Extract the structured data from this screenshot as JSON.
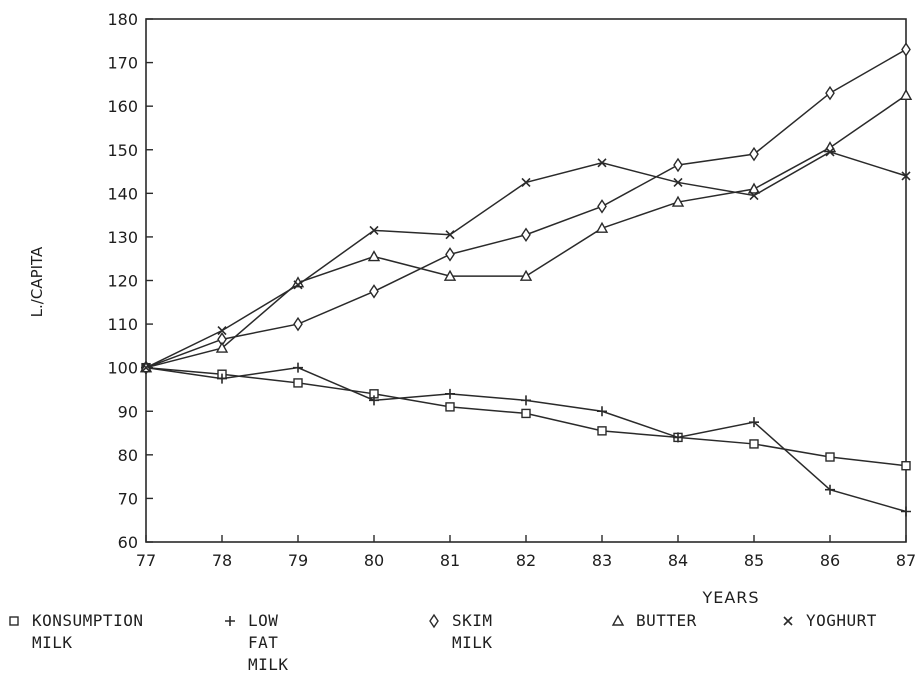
{
  "chart_data": {
    "type": "line",
    "title": "",
    "xlabel": "YEARS",
    "ylabel": "L./CAPITA",
    "x": [
      77,
      78,
      79,
      80,
      81,
      82,
      83,
      84,
      85,
      86,
      87
    ],
    "xlim": [
      77,
      87
    ],
    "ylim": [
      60,
      180
    ],
    "yticks": [
      60,
      70,
      80,
      90,
      100,
      110,
      120,
      130,
      140,
      150,
      160,
      170,
      180
    ],
    "grid": false,
    "legend_position": "bottom",
    "line_color": "#2a2a2a",
    "series": [
      {
        "name": "KONSUMPTION MILK",
        "marker": "square",
        "values": [
          100,
          98.5,
          96.5,
          94,
          91,
          89.5,
          85.5,
          84,
          82.5,
          79.5,
          77.5
        ]
      },
      {
        "name": "LOW FAT MILK",
        "marker": "plus",
        "values": [
          100,
          97.5,
          100,
          92.5,
          94,
          92.5,
          90,
          84,
          87.5,
          72,
          67
        ]
      },
      {
        "name": "SKIM MILK",
        "marker": "diamond",
        "values": [
          100,
          106.5,
          110,
          117.5,
          126,
          130.5,
          137,
          146.5,
          149,
          163,
          173
        ]
      },
      {
        "name": "BUTTER",
        "marker": "triangle",
        "values": [
          100,
          104.5,
          119.5,
          125.5,
          121,
          121,
          132,
          138,
          141,
          150.5,
          162.5
        ]
      },
      {
        "name": "YOGHURT",
        "marker": "x",
        "values": [
          100,
          108.5,
          119,
          131.5,
          130.5,
          142.5,
          147,
          142.5,
          139.5,
          149.5,
          144
        ]
      }
    ]
  },
  "legend": [
    {
      "marker": "square",
      "lines": [
        "KONSUMPTION",
        "MILK"
      ]
    },
    {
      "marker": "plus",
      "lines": [
        "LOW",
        "FAT",
        "MILK"
      ]
    },
    {
      "marker": "diamond",
      "lines": [
        "SKIM",
        "MILK"
      ]
    },
    {
      "marker": "triangle",
      "lines": [
        "BUTTER"
      ]
    },
    {
      "marker": "x",
      "lines": [
        "YOGHURT"
      ]
    }
  ]
}
